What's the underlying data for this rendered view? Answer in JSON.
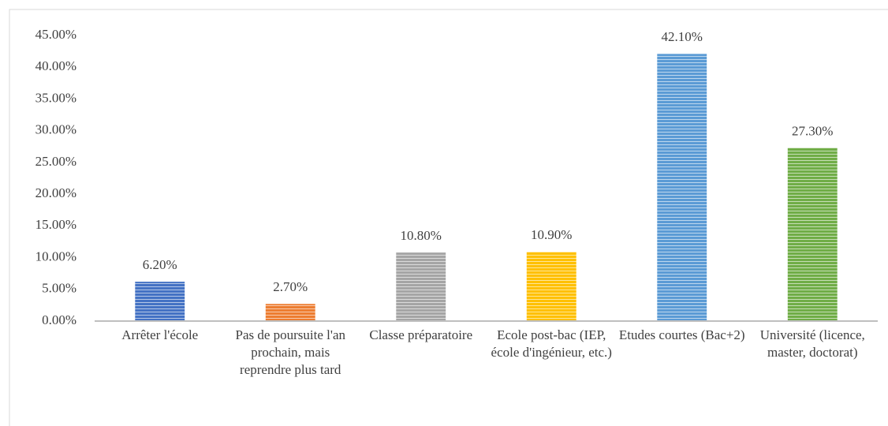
{
  "chart_data": {
    "type": "bar",
    "categories": [
      "Arrêter l'école",
      "Pas de poursuite l'an prochain, mais reprendre plus tard",
      "Classe préparatoire",
      "Ecole post-bac (IEP, école d'ingénieur, etc.)",
      "Etudes courtes (Bac+2)",
      "Université (licence, master, doctorat)"
    ],
    "values": [
      6.2,
      2.7,
      10.8,
      10.9,
      42.1,
      27.3
    ],
    "value_labels": [
      "6.20%",
      "2.70%",
      "10.80%",
      "10.90%",
      "42.10%",
      "27.30%"
    ],
    "colors": [
      "#4472c4",
      "#ed7d31",
      "#a5a5a5",
      "#ffc000",
      "#5b9bd5",
      "#70ad47"
    ],
    "ylim": [
      0,
      45
    ],
    "yticks": [
      {
        "value": 0,
        "label": "0.00%"
      },
      {
        "value": 5,
        "label": "5.00%"
      },
      {
        "value": 10,
        "label": "10.00%"
      },
      {
        "value": 15,
        "label": "15.00%"
      },
      {
        "value": 20,
        "label": "20.00%"
      },
      {
        "value": 25,
        "label": "25.00%"
      },
      {
        "value": 30,
        "label": "30.00%"
      },
      {
        "value": 35,
        "label": "35.00%"
      },
      {
        "value": 40,
        "label": "40.00%"
      },
      {
        "value": 45,
        "label": "45.00%"
      }
    ],
    "grid": false
  }
}
